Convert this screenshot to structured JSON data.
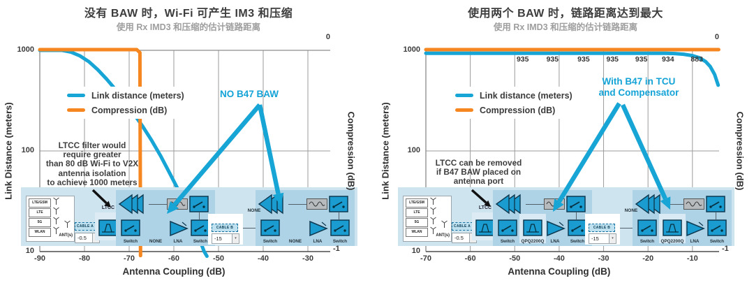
{
  "colors": {
    "blue": "#17A5D6",
    "orange": "#F6861F",
    "grid": "#9B9B9B",
    "axis": "#4D4D4D",
    "strip_bg": "#CEE4EF",
    "panel": "#AFD3E6",
    "block": "#1B9CD0",
    "block_border": "#0D3A52"
  },
  "chart_data": [
    {
      "type": "line",
      "title": "没有 BAW 时，Wi-Fi 可产生 IM3 和压缩",
      "subtitle": "使用 Rx IMD3 和压缩的估计链路距离",
      "xlabel": "Antenna Coupling (dB)",
      "ylabel": "Link Distance (meters)",
      "y2label": "Compression (dB)",
      "x_ticks": [
        -90,
        -80,
        -70,
        -60,
        -50,
        -40,
        -30
      ],
      "x_domain": [
        -90,
        -25
      ],
      "y_scale": "log",
      "y_domain": [
        10,
        1000
      ],
      "y_ticks": [
        1000,
        100,
        10
      ],
      "y2_domain": [
        0,
        -1
      ],
      "y2_ticks": [
        "0",
        "-1"
      ],
      "grid": true,
      "legend": [
        {
          "label": "Link distance (meters)",
          "color": "#17A5D6"
        },
        {
          "label": "Compression (dB)",
          "color": "#F6861F"
        }
      ],
      "callout": [
        "NO B47 BAW"
      ],
      "note": [
        "LTCC filter would",
        "require greater",
        "than 80 dB Wi-Fi to V2X",
        "antenna isolation",
        "to achieve 1000 meters"
      ],
      "series": [
        {
          "name": "Link distance (meters)",
          "axis": "left",
          "color": "#17A5D6",
          "points": [
            [
              -90,
              1000
            ],
            [
              -85,
              1000
            ],
            [
              -83,
              960
            ],
            [
              -81,
              880
            ],
            [
              -79,
              770
            ],
            [
              -77,
              640
            ],
            [
              -75,
              515
            ],
            [
              -73,
              405
            ],
            [
              -71,
              310
            ],
            [
              -69,
              235
            ],
            [
              -67,
              176
            ],
            [
              -65,
              128
            ],
            [
              -63,
              90
            ],
            [
              -61,
              61
            ],
            [
              -59,
              41
            ],
            [
              -57,
              26
            ],
            [
              -55,
              16
            ],
            [
              -53.2,
              10
            ],
            [
              -52.6,
              9
            ]
          ]
        },
        {
          "name": "Compression (dB)",
          "axis": "right",
          "color": "#F6861F",
          "points": [
            [
              -90,
              0
            ],
            [
              -68.3,
              0
            ],
            [
              -67.6,
              -0.015
            ],
            [
              -67.45,
              -1.02
            ]
          ]
        }
      ]
    },
    {
      "type": "line",
      "title": "使用两个 BAW 时，链路距离达到最大",
      "subtitle": "使用 Rx IMD3 和压缩的估计链路距离",
      "xlabel": "Antenna Coupling (dB)",
      "ylabel": "Link Distance (meters)",
      "y2label": "Compression (dB)",
      "x_ticks": [
        -70,
        -60,
        -50,
        -40,
        -30,
        -20,
        -10
      ],
      "x_domain": [
        -70,
        -4
      ],
      "y_scale": "log",
      "y_domain": [
        10,
        1000
      ],
      "y_ticks": [
        1000,
        100,
        10
      ],
      "y2_domain": [
        0,
        -1
      ],
      "y2_ticks": [
        "0",
        "-1"
      ],
      "grid": true,
      "legend": [
        {
          "label": "Link distance (meters)",
          "color": "#17A5D6"
        },
        {
          "label": "Compression (dB)",
          "color": "#F6861F"
        }
      ],
      "callout": [
        "With B47 in TCU",
        "and Compensator"
      ],
      "note": [
        "LTCC can be removed",
        "if B47 BAW placed on",
        "antenna port"
      ],
      "data_labels": [
        {
          "x": -48.2,
          "text": "935"
        },
        {
          "x": -41.5,
          "text": "935"
        },
        {
          "x": -34.5,
          "text": "935"
        },
        {
          "x": -28.0,
          "text": "935"
        },
        {
          "x": -21.5,
          "text": "935"
        },
        {
          "x": -15.5,
          "text": "934"
        },
        {
          "x": -9.0,
          "text": "883"
        }
      ],
      "series": [
        {
          "name": "Link distance (meters)",
          "axis": "left",
          "color": "#17A5D6",
          "points": [
            [
              -70,
              935
            ],
            [
              -24,
              935
            ],
            [
              -19,
              935
            ],
            [
              -16,
              934
            ],
            [
              -14,
              929
            ],
            [
              -12,
              915
            ],
            [
              -10,
              885
            ],
            [
              -8.5,
              845
            ],
            [
              -7,
              770
            ],
            [
              -6,
              690
            ],
            [
              -5,
              575
            ],
            [
              -4.2,
              450
            ]
          ]
        },
        {
          "name": "Compression (dB)",
          "axis": "right",
          "color": "#F6861F",
          "points": [
            [
              -70,
              0
            ],
            [
              -4.1,
              0
            ]
          ]
        }
      ]
    }
  ],
  "diagram": {
    "ant_rows": [
      "LTE/GSM",
      "LTE",
      "5G",
      "WLAN"
    ],
    "ant_label": "ANT(s)",
    "ltcc_label": "LTCC",
    "cable_a": {
      "text": "CABLE A",
      "value": "-0.5"
    },
    "cable_b": {
      "text": "CABLE B",
      "value": "-15"
    },
    "mid_label": "NONE",
    "charts": [
      {
        "groups": [
          [
            "Switch",
            "NONE",
            "LNA",
            "Switch"
          ],
          [
            "Switch",
            "NONE",
            "LNA",
            "Switch"
          ]
        ]
      },
      {
        "groups": [
          [
            "Switch",
            "QPQ2200Q",
            "LNA",
            "Switch"
          ],
          [
            "Switch",
            "QPQ2200Q",
            "LNA",
            "Switch"
          ]
        ]
      }
    ]
  }
}
